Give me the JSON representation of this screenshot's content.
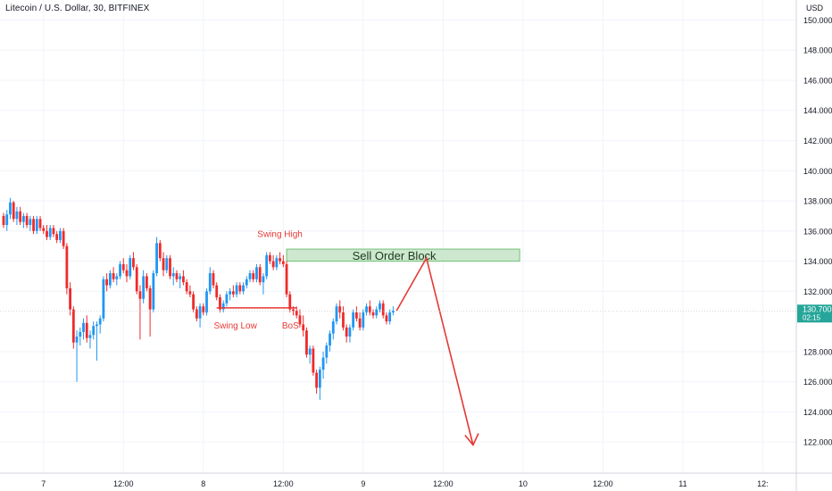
{
  "header": {
    "symbol_title": "Litecoin / U.S. Dollar, 30, BITFINEX",
    "currency": "USD"
  },
  "price_tag": {
    "price": "130.700",
    "countdown": "02:15",
    "color": "#26a69a"
  },
  "colors": {
    "up": "#2196f3",
    "down": "#ef2a2a",
    "annotation": "#e53935",
    "order_block_fill": "#c8e6c9",
    "order_block_border": "#66bb6a",
    "grid": "#f0f3fa"
  },
  "chart_data": {
    "type": "candlestick",
    "ylim": [
      121,
      150.5
    ],
    "price_ticks": [
      150,
      148,
      146,
      144,
      142,
      140,
      138,
      136,
      134,
      132,
      128,
      126,
      124,
      122
    ],
    "price_tick_labels": [
      "150.000",
      "148.000",
      "146.000",
      "144.000",
      "142.000",
      "140.000",
      "138.000",
      "136.000",
      "134.000",
      "132.000",
      "128.000",
      "126.000",
      "124.000",
      "122.000"
    ],
    "time_labels": [
      {
        "text": "7",
        "bar": 12
      },
      {
        "text": "12:00",
        "bar": 36
      },
      {
        "text": "8",
        "bar": 60
      },
      {
        "text": "12:00",
        "bar": 84
      },
      {
        "text": "9",
        "bar": 108
      },
      {
        "text": "12:00",
        "bar": 132
      },
      {
        "text": "10",
        "bar": 156
      },
      {
        "text": "12:00",
        "bar": 180
      },
      {
        "text": "11",
        "bar": 204
      },
      {
        "text": "12:",
        "bar": 228
      }
    ],
    "bar_count": 236,
    "candles": [
      [
        137.0,
        137.2,
        136.2,
        136.4
      ],
      [
        136.4,
        137.4,
        136.0,
        137.1
      ],
      [
        137.1,
        138.2,
        136.8,
        137.9
      ],
      [
        137.9,
        138.0,
        136.6,
        136.8
      ],
      [
        136.8,
        137.6,
        136.4,
        137.3
      ],
      [
        137.3,
        137.6,
        136.4,
        136.6
      ],
      [
        136.6,
        137.2,
        136.2,
        137.0
      ],
      [
        137.0,
        137.2,
        136.2,
        136.4
      ],
      [
        136.4,
        137.0,
        136.0,
        136.8
      ],
      [
        136.8,
        137.0,
        135.8,
        136.0
      ],
      [
        136.0,
        137.0,
        135.8,
        136.8
      ],
      [
        136.8,
        137.0,
        136.0,
        136.2
      ],
      [
        136.2,
        136.4,
        135.8,
        136.0
      ],
      [
        136.0,
        136.4,
        135.4,
        135.6
      ],
      [
        135.6,
        136.4,
        135.4,
        136.2
      ],
      [
        136.2,
        136.4,
        135.6,
        135.8
      ],
      [
        135.8,
        136.0,
        135.2,
        135.4
      ],
      [
        135.4,
        136.2,
        135.2,
        136.0
      ],
      [
        136.0,
        136.2,
        134.8,
        135.0
      ],
      [
        135.0,
        135.2,
        131.8,
        132.2
      ],
      [
        132.2,
        132.6,
        130.4,
        130.8
      ],
      [
        130.8,
        131.0,
        128.2,
        128.6
      ],
      [
        128.6,
        129.4,
        126.0,
        129.0
      ],
      [
        129.0,
        129.6,
        128.4,
        129.3
      ],
      [
        129.3,
        130.2,
        128.8,
        129.9
      ],
      [
        129.9,
        130.4,
        128.6,
        128.9
      ],
      [
        128.9,
        129.4,
        128.2,
        129.1
      ],
      [
        129.1,
        130.0,
        128.8,
        129.7
      ],
      [
        129.7,
        130.0,
        127.4,
        129.8
      ],
      [
        129.8,
        130.4,
        129.2,
        130.2
      ],
      [
        130.2,
        133.0,
        130.0,
        132.8
      ],
      [
        132.8,
        133.2,
        132.0,
        132.4
      ],
      [
        132.4,
        133.4,
        132.2,
        133.2
      ],
      [
        133.2,
        133.6,
        132.6,
        132.8
      ],
      [
        132.8,
        133.2,
        132.4,
        133.0
      ],
      [
        133.0,
        134.0,
        132.8,
        133.8
      ],
      [
        133.8,
        134.2,
        133.2,
        133.4
      ],
      [
        133.4,
        133.8,
        132.6,
        133.0
      ],
      [
        133.0,
        134.4,
        132.8,
        134.2
      ],
      [
        134.2,
        134.6,
        133.4,
        133.6
      ],
      [
        133.6,
        133.8,
        131.8,
        132.0
      ],
      [
        132.0,
        132.4,
        128.8,
        131.5
      ],
      [
        131.5,
        133.4,
        131.2,
        133.0
      ],
      [
        133.0,
        133.2,
        132.0,
        132.2
      ],
      [
        132.2,
        132.4,
        129.0,
        130.8
      ],
      [
        130.8,
        133.4,
        130.6,
        133.2
      ],
      [
        133.2,
        135.6,
        133.0,
        135.2
      ],
      [
        135.2,
        135.4,
        134.0,
        134.2
      ],
      [
        134.2,
        134.6,
        133.0,
        133.4
      ],
      [
        133.4,
        134.4,
        133.2,
        134.2
      ],
      [
        134.2,
        134.4,
        132.8,
        133.0
      ],
      [
        133.0,
        133.6,
        132.4,
        133.2
      ],
      [
        133.2,
        133.4,
        132.6,
        132.8
      ],
      [
        132.8,
        133.2,
        132.2,
        133.0
      ],
      [
        133.0,
        133.4,
        132.4,
        132.6
      ],
      [
        132.6,
        132.8,
        131.8,
        132.0
      ],
      [
        132.0,
        132.4,
        131.6,
        131.8
      ],
      [
        131.8,
        132.0,
        130.6,
        130.8
      ],
      [
        130.8,
        131.0,
        130.0,
        130.2
      ],
      [
        130.2,
        131.2,
        129.6,
        131.0
      ],
      [
        131.0,
        131.2,
        130.4,
        130.6
      ],
      [
        130.6,
        132.2,
        130.4,
        132.0
      ],
      [
        132.0,
        133.6,
        131.8,
        133.2
      ],
      [
        133.2,
        133.4,
        132.2,
        132.4
      ],
      [
        132.4,
        132.6,
        131.4,
        131.6
      ],
      [
        131.6,
        131.8,
        130.6,
        130.8
      ],
      [
        130.8,
        131.4,
        130.6,
        131.2
      ],
      [
        131.2,
        132.0,
        131.0,
        131.8
      ],
      [
        131.8,
        132.2,
        131.4,
        132.0
      ],
      [
        132.0,
        132.4,
        131.6,
        131.8
      ],
      [
        131.8,
        132.6,
        131.6,
        132.4
      ],
      [
        132.4,
        132.6,
        131.8,
        132.0
      ],
      [
        132.0,
        132.6,
        131.8,
        132.4
      ],
      [
        132.4,
        133.0,
        132.2,
        132.8
      ],
      [
        132.8,
        133.4,
        132.6,
        133.2
      ],
      [
        133.2,
        133.4,
        132.6,
        132.8
      ],
      [
        132.8,
        133.8,
        132.6,
        133.6
      ],
      [
        133.6,
        133.8,
        132.4,
        132.6
      ],
      [
        132.6,
        133.2,
        131.8,
        133.0
      ],
      [
        133.0,
        134.6,
        132.8,
        134.4
      ],
      [
        134.4,
        134.6,
        133.8,
        134.0
      ],
      [
        134.0,
        134.4,
        133.4,
        133.6
      ],
      [
        133.6,
        134.4,
        133.4,
        134.2
      ],
      [
        134.2,
        134.6,
        133.8,
        134.0
      ],
      [
        134.0,
        134.4,
        133.6,
        133.8
      ],
      [
        133.8,
        134.0,
        131.6,
        131.8
      ],
      [
        131.8,
        132.0,
        130.6,
        130.8
      ],
      [
        130.8,
        131.0,
        130.4,
        130.7
      ],
      [
        130.7,
        131.0,
        130.2,
        130.4
      ],
      [
        130.4,
        130.8,
        129.6,
        129.8
      ],
      [
        129.8,
        130.4,
        129.0,
        129.4
      ],
      [
        129.4,
        129.6,
        127.6,
        127.8
      ],
      [
        127.8,
        128.4,
        127.2,
        128.2
      ],
      [
        128.2,
        128.4,
        126.4,
        126.6
      ],
      [
        126.6,
        126.8,
        125.2,
        125.6
      ],
      [
        125.6,
        127.0,
        124.8,
        126.8
      ],
      [
        126.8,
        128.0,
        126.2,
        127.6
      ],
      [
        127.6,
        128.6,
        127.2,
        128.4
      ],
      [
        128.4,
        129.4,
        128.0,
        129.2
      ],
      [
        129.2,
        130.2,
        128.8,
        130.0
      ],
      [
        130.0,
        131.2,
        129.8,
        131.0
      ],
      [
        131.0,
        131.4,
        130.2,
        130.6
      ],
      [
        130.6,
        131.0,
        129.4,
        129.6
      ],
      [
        129.6,
        129.8,
        128.6,
        129.0
      ],
      [
        129.0,
        129.8,
        128.6,
        129.6
      ],
      [
        129.6,
        130.8,
        129.4,
        130.6
      ],
      [
        130.6,
        131.0,
        130.0,
        130.2
      ],
      [
        130.2,
        130.6,
        129.4,
        129.6
      ],
      [
        129.6,
        130.8,
        129.4,
        130.6
      ],
      [
        130.6,
        131.2,
        130.4,
        131.0
      ],
      [
        131.0,
        131.4,
        130.4,
        130.6
      ],
      [
        130.6,
        130.8,
        130.2,
        130.4
      ],
      [
        130.4,
        131.0,
        130.2,
        130.8
      ],
      [
        130.8,
        131.4,
        130.6,
        131.2
      ],
      [
        131.2,
        131.4,
        130.2,
        130.4
      ],
      [
        130.4,
        130.6,
        129.8,
        130.0
      ],
      [
        130.0,
        130.8,
        129.8,
        130.6
      ],
      [
        130.6,
        131.0,
        130.4,
        130.7
      ]
    ],
    "annotations": {
      "swing_high": {
        "text": "Swing High",
        "bar": 83,
        "price": 135.6
      },
      "swing_low": {
        "text": "Swing Low",
        "bar": 68,
        "price": 129.7
      },
      "bos": {
        "text": "BoS",
        "bar": 84,
        "price": 129.7
      },
      "bos_line": {
        "from_bar": 64,
        "to_bar": 88,
        "price": 130.9
      },
      "order_block": {
        "text": "Sell Order Block",
        "from_bar": 85,
        "to_bar": 155,
        "top": 134.8,
        "bottom": 134.0
      },
      "projection": [
        {
          "bar": 118,
          "price": 130.7
        },
        {
          "bar": 127,
          "price": 134.2
        },
        {
          "bar": 141,
          "price": 121.8
        }
      ]
    }
  }
}
